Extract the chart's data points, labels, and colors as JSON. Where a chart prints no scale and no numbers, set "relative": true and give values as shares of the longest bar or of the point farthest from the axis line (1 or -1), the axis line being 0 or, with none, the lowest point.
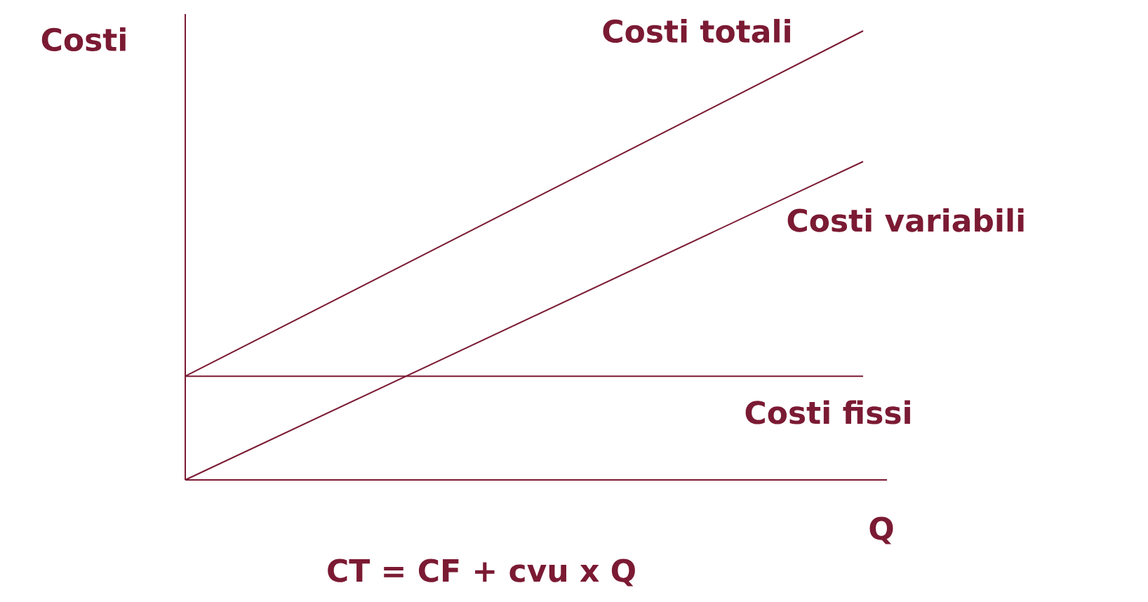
{
  "chart_data": {
    "type": "line",
    "relative": true,
    "ylabel": "Costi",
    "xlabel": "Q",
    "marker": "none",
    "categories": [
      null,
      null
    ],
    "series": [
      {
        "name": "Costi totali",
        "color": "#7b1a33",
        "values": [
          0.231,
          1
        ]
      },
      {
        "name": "Costi variabili",
        "color": "#7b1a33",
        "values": [
          0,
          0.709
        ]
      },
      {
        "name": "Costi fissi",
        "color": "#7b1a33",
        "values": [
          0.231,
          0.231
        ]
      }
    ],
    "annotations": [
      "CT = CF + cvu x Q"
    ]
  }
}
